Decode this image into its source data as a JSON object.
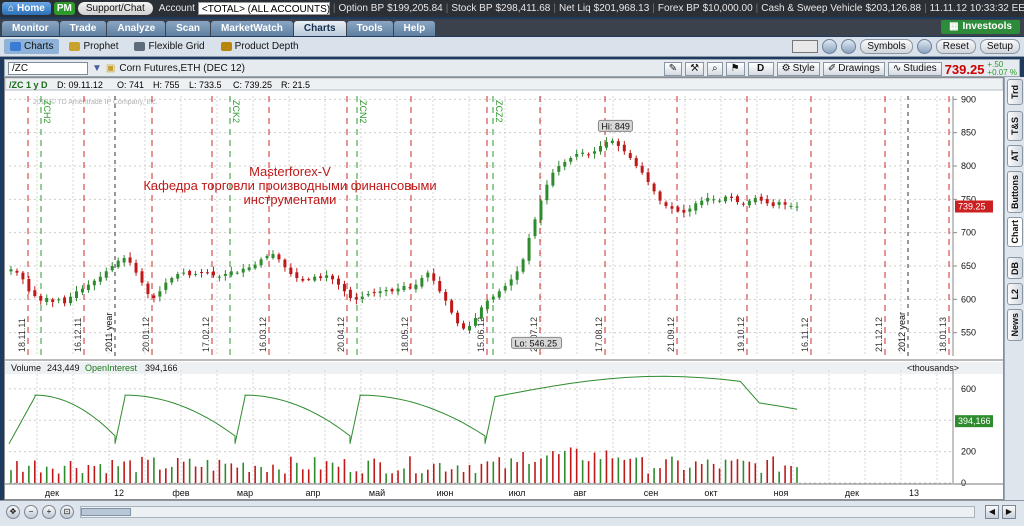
{
  "topbar": {
    "home": "Home",
    "pm": "PM",
    "support": "Support/Chat",
    "account_label": "Account",
    "account_value": "<TOTAL> (ALL ACCOUNTS)",
    "option_bp_label": "Option BP",
    "option_bp": "$199,205.84",
    "stock_bp_label": "Stock BP",
    "stock_bp": "$298,411.68",
    "net_liq_label": "Net Liq",
    "net_liq": "$201,968.13",
    "forex_bp_label": "Forex BP",
    "forex_bp": "$10,000.00",
    "sweep_label": "Cash & Sweep Vehicle",
    "sweep": "$203,126.88",
    "datetime": "11.11.12 10:33:32 EET"
  },
  "tabs": [
    "Monitor",
    "Trade",
    "Analyze",
    "Scan",
    "MarketWatch",
    "Charts",
    "Tools",
    "Help"
  ],
  "active_tab": "Charts",
  "investools": "Investools",
  "subtabs": [
    {
      "label": "Charts",
      "icon": "chart-icon"
    },
    {
      "label": "Prophet",
      "icon": "prophet-icon"
    },
    {
      "label": "Flexible Grid",
      "icon": "grid-icon"
    },
    {
      "label": "Product Depth",
      "icon": "depth-icon"
    }
  ],
  "subright": {
    "symbols": "Symbols",
    "reset": "Reset",
    "setup": "Setup"
  },
  "chartbar": {
    "symbol": "/ZC",
    "description": "Corn Futures,ETH (DEC 12)",
    "d_button": "D",
    "style": "Style",
    "drawings": "Drawings",
    "studies": "Studies",
    "price": "739.25",
    "change_top": "+.50",
    "change_bottom": "+0.07 %"
  },
  "chart_data": {
    "type": "candlestick",
    "info": {
      "symbol": "/ZC 1 y D",
      "date": "D: 09.11.12",
      "open": "O: 741",
      "high": "H: 755",
      "low": "L: 733.5",
      "close": "C: 739.25",
      "range": "R: 21.5"
    },
    "copyright": "2012 © TD Ameritrade IP Company, Inc.",
    "annotation": [
      "Masterforex-V",
      "Кафедра торговли производными финансовыми",
      "инструментами"
    ],
    "hi_label": "Hi: 849",
    "lo_label": "Lo: 546.25",
    "price_ticks": [
      900,
      850,
      800,
      750,
      700,
      650,
      600,
      550
    ],
    "last_price": "739.25",
    "date_markers": [
      "18.11.11",
      "16.12.11",
      "20.01.12",
      "17.02.12",
      "16.03.12",
      "20.04.12",
      "18.05.12",
      "15.06.12",
      "20.07.12",
      "17.08.12",
      "21.09.12",
      "19.10.12",
      "16.11.12",
      "21.12.12",
      "18.01.13"
    ],
    "year_labels": [
      "2011 year",
      "2012 year"
    ],
    "contract_labels": [
      "ZCH2",
      "ZCK2",
      "ZCN2",
      "ZCZ2"
    ],
    "closes": [
      645,
      640,
      630,
      612,
      605,
      598,
      602,
      596,
      600,
      594,
      604,
      612,
      616,
      622,
      628,
      634,
      642,
      650,
      658,
      662,
      655,
      640,
      625,
      608,
      602,
      612,
      625,
      632,
      638,
      640,
      636,
      638,
      640,
      640,
      636,
      634,
      638,
      642,
      640,
      646,
      648,
      652,
      660,
      665,
      668,
      660,
      648,
      638,
      632,
      628,
      630,
      634,
      632,
      636,
      630,
      622,
      612,
      602,
      600,
      604,
      608,
      610,
      612,
      614,
      612,
      616,
      620,
      618,
      622,
      632,
      640,
      628,
      612,
      598,
      580,
      564,
      556,
      560,
      572,
      588,
      598,
      604,
      612,
      620,
      630,
      642,
      660,
      692,
      720,
      748,
      772,
      790,
      800,
      806,
      812,
      818,
      820,
      816,
      822,
      830,
      836,
      838,
      830,
      822,
      812,
      800,
      790,
      776,
      762,
      748,
      740,
      736,
      732,
      730,
      736,
      744,
      748,
      752,
      750,
      748,
      754,
      752,
      746,
      742,
      748,
      752,
      748,
      744,
      740,
      746,
      742,
      740,
      739.25
    ],
    "volume": {
      "label": "Volume",
      "value": "243,449",
      "oi_label": "OpenInterest",
      "oi_value": "394,166",
      "units": "<thousands>",
      "ticks": [
        600,
        400,
        200,
        0
      ],
      "oi_last": "394,166"
    },
    "months": [
      "дек",
      "12",
      "фев",
      "мар",
      "апр",
      "май",
      "июн",
      "июл",
      "авг",
      "сен",
      "окт",
      "ноя",
      "дек",
      "13"
    ]
  },
  "sidetabs": [
    "Trd",
    "T&S",
    "AT",
    "Buttons",
    "Chart",
    "DB",
    "L2",
    "News"
  ]
}
